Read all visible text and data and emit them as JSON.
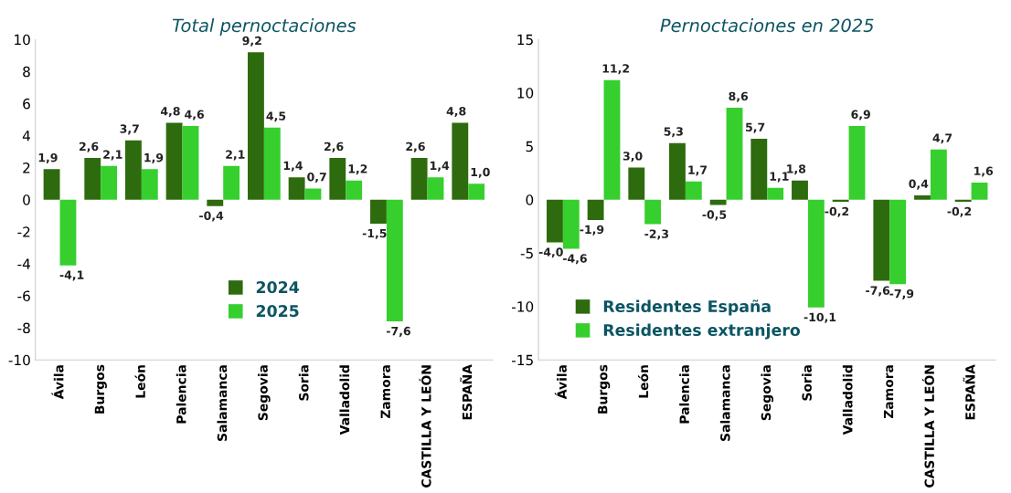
{
  "chart_data": [
    {
      "type": "bar",
      "title": "Total pernoctaciones",
      "categories": [
        "Ávila",
        "Burgos",
        "León",
        "Palencia",
        "Salamanca",
        "Segovia",
        "Soria",
        "Valladolid",
        "Zamora",
        "CASTILLA Y LEÓN",
        "ESPAÑA"
      ],
      "series": [
        {
          "name": "2024",
          "color": "#2e6b0e",
          "values": [
            1.9,
            2.6,
            3.7,
            4.8,
            -0.4,
            9.2,
            1.4,
            2.6,
            -1.5,
            2.6,
            4.8
          ],
          "value_labels": [
            "1,9",
            "2,6",
            "3,7",
            "4,8",
            "-0,4",
            "9,2",
            "1,4",
            "2,6",
            "-1,5",
            "2,6",
            "4,8"
          ]
        },
        {
          "name": "2025",
          "color": "#36cf2e",
          "values": [
            -4.1,
            2.1,
            1.9,
            4.6,
            2.1,
            4.5,
            0.7,
            1.2,
            -7.6,
            1.4,
            1.0
          ],
          "value_labels": [
            "-4,1",
            "2,1",
            "1,9",
            "4,6",
            "2,1",
            "4,5",
            "0,7",
            "1,2",
            "-7,6",
            "1,4",
            "1,0"
          ]
        }
      ],
      "ylim": [
        -10,
        10
      ],
      "yticks": [
        -10,
        -8,
        -6,
        -4,
        -2,
        0,
        2,
        4,
        6,
        8,
        10
      ],
      "grid": false,
      "legend": "bottom"
    },
    {
      "type": "bar",
      "title": "Pernoctaciones en 2025",
      "categories": [
        "Ávila",
        "Burgos",
        "León",
        "Palencia",
        "Salamanca",
        "Segovia",
        "Soria",
        "Valladolid",
        "Zamora",
        "CASTILLA Y LEÓN",
        "ESPAÑA"
      ],
      "series": [
        {
          "name": "Residentes España",
          "color": "#2e6b0e",
          "values": [
            -4.0,
            -1.9,
            3.0,
            5.3,
            -0.5,
            5.7,
            1.8,
            -0.2,
            -7.6,
            0.4,
            -0.2
          ],
          "value_labels": [
            "-4,0",
            "-1,9",
            "3,0",
            "5,3",
            "-0,5",
            "5,7",
            "1,8",
            "-0,2",
            "-7,6",
            "0,4",
            "-0,2"
          ]
        },
        {
          "name": "Residentes extranjero",
          "color": "#36cf2e",
          "values": [
            -4.6,
            11.2,
            -2.3,
            1.7,
            8.6,
            1.1,
            -10.1,
            6.9,
            -7.9,
            4.7,
            1.6
          ],
          "value_labels": [
            "-4,6",
            "11,2",
            "-2,3",
            "1,7",
            "8,6",
            "1,1",
            "-10,1",
            "6,9",
            "-7,9",
            "4,7",
            "1,6"
          ]
        }
      ],
      "ylim": [
        -15,
        15
      ],
      "yticks": [
        -15,
        -10,
        -5,
        0,
        5,
        10,
        15
      ],
      "grid": false,
      "legend": "bottom left"
    }
  ]
}
